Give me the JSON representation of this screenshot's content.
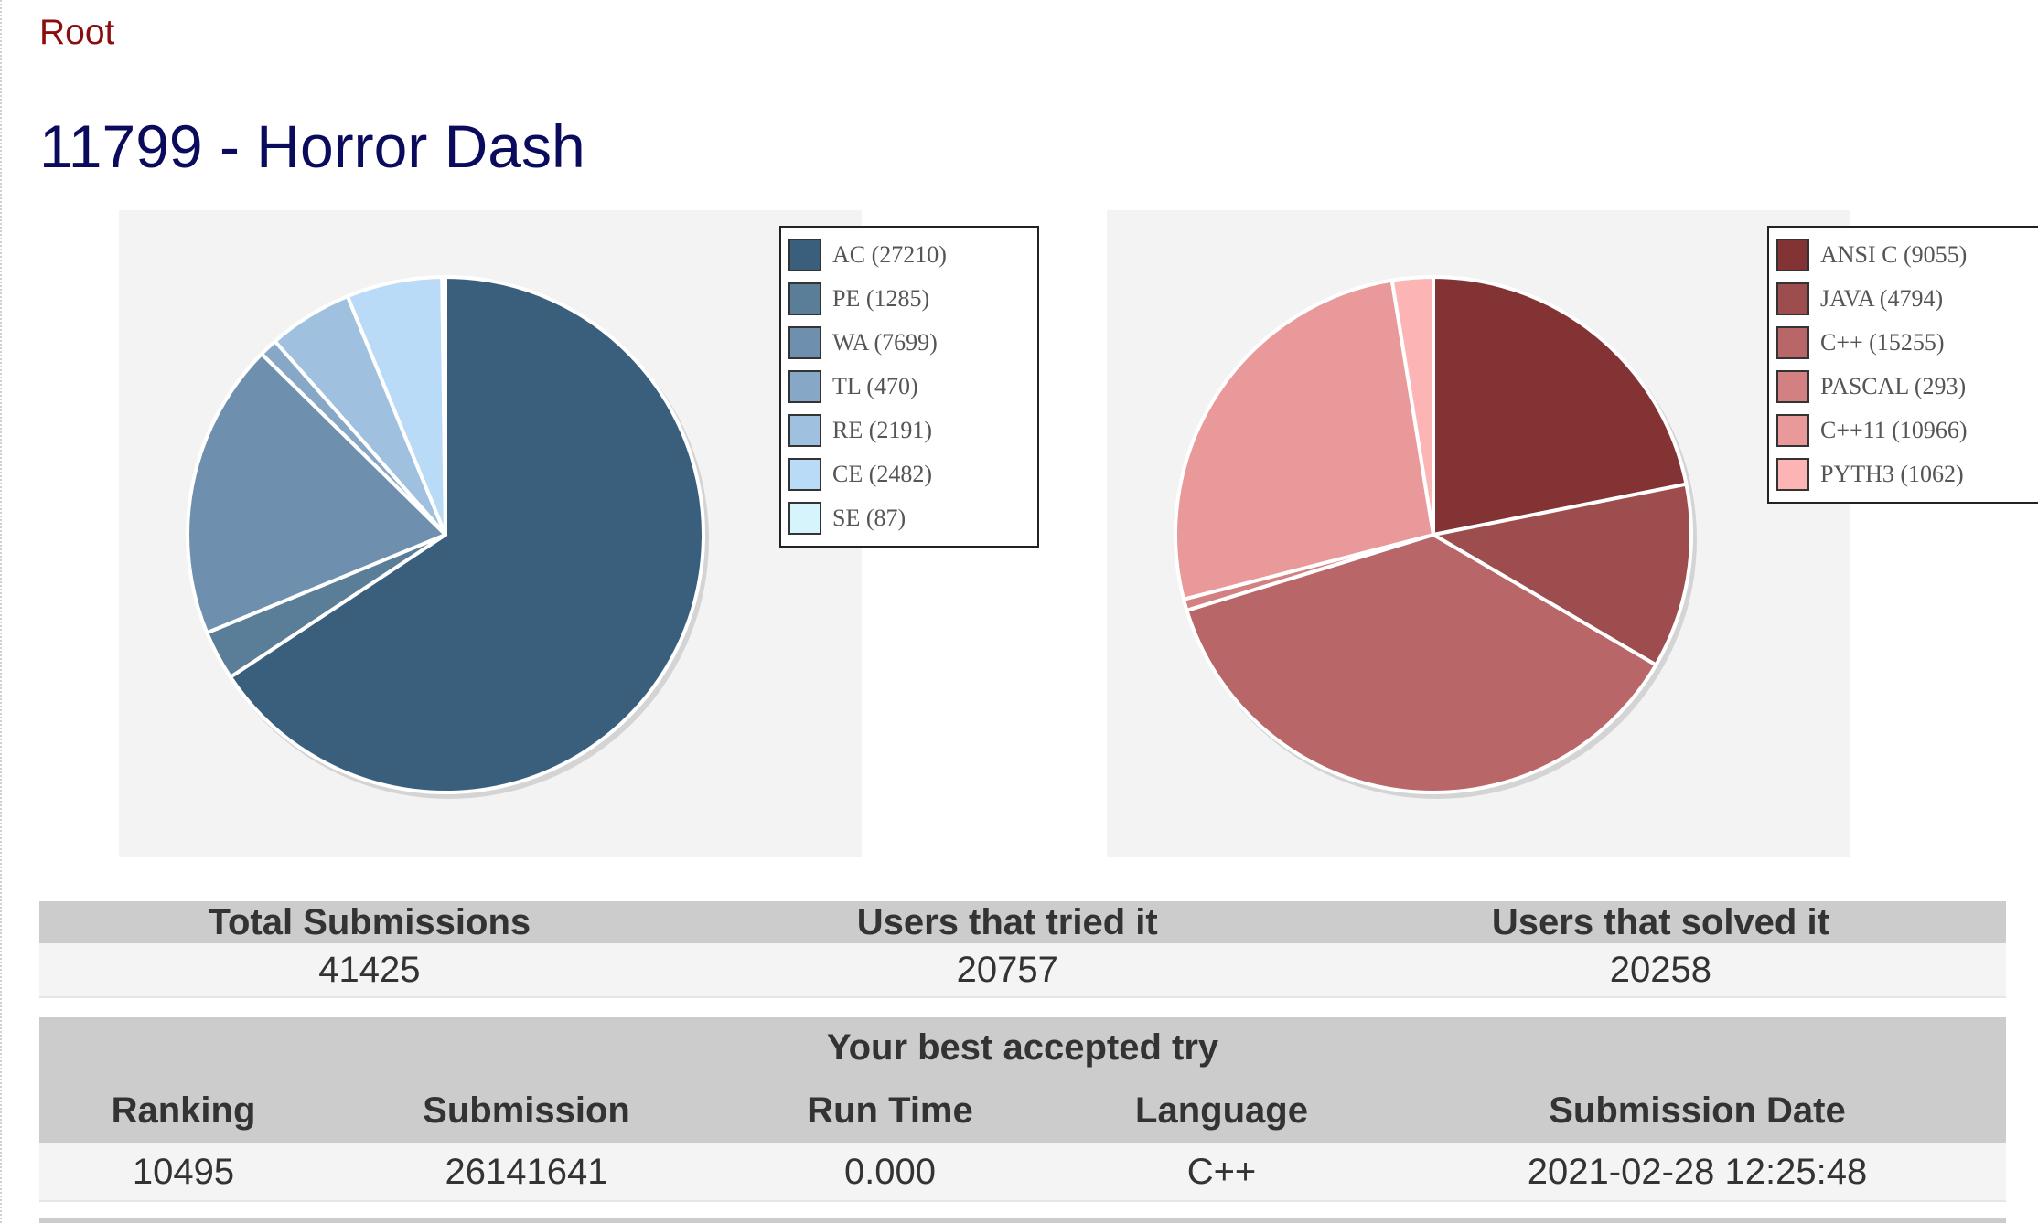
{
  "breadcrumb": "Root",
  "title": "11799 - Horror Dash",
  "chart_data": [
    {
      "type": "pie",
      "title": "",
      "legend_position": "top-right",
      "categories": [
        "AC (27210)",
        "PE (1285)",
        "WA (7699)",
        "TL (470)",
        "RE (2191)",
        "CE (2482)",
        "SE (87)"
      ],
      "values": [
        27210,
        1285,
        7699,
        470,
        2191,
        2482,
        87
      ],
      "colors": [
        "#3a5f7d",
        "#5a7d98",
        "#6e90ae",
        "#86a8c6",
        "#9fc0df",
        "#b9dbf7",
        "#d6f4fb"
      ]
    },
    {
      "type": "pie",
      "title": "",
      "legend_position": "top-right",
      "categories": [
        "ANSI C (9055)",
        "JAVA (4794)",
        "C++ (15255)",
        "PASCAL (293)",
        "C++11 (10966)",
        "PYTH3 (1062)"
      ],
      "values": [
        9055,
        4794,
        15255,
        293,
        10966,
        1062
      ],
      "colors": [
        "#843335",
        "#9e4d4f",
        "#b86668",
        "#d38082",
        "#ea999a",
        "#fdb4b5"
      ]
    }
  ],
  "stats": {
    "headers": [
      "Total Submissions",
      "Users that tried it",
      "Users that solved it"
    ],
    "values": [
      "41425",
      "20757",
      "20258"
    ]
  },
  "best_try": {
    "caption": "Your best accepted try",
    "headers": [
      "Ranking",
      "Submission",
      "Run Time",
      "Language",
      "Submission Date"
    ],
    "values": [
      "10495",
      "26141641",
      "0.000",
      "C++",
      "2021-02-28 12:25:48"
    ]
  }
}
